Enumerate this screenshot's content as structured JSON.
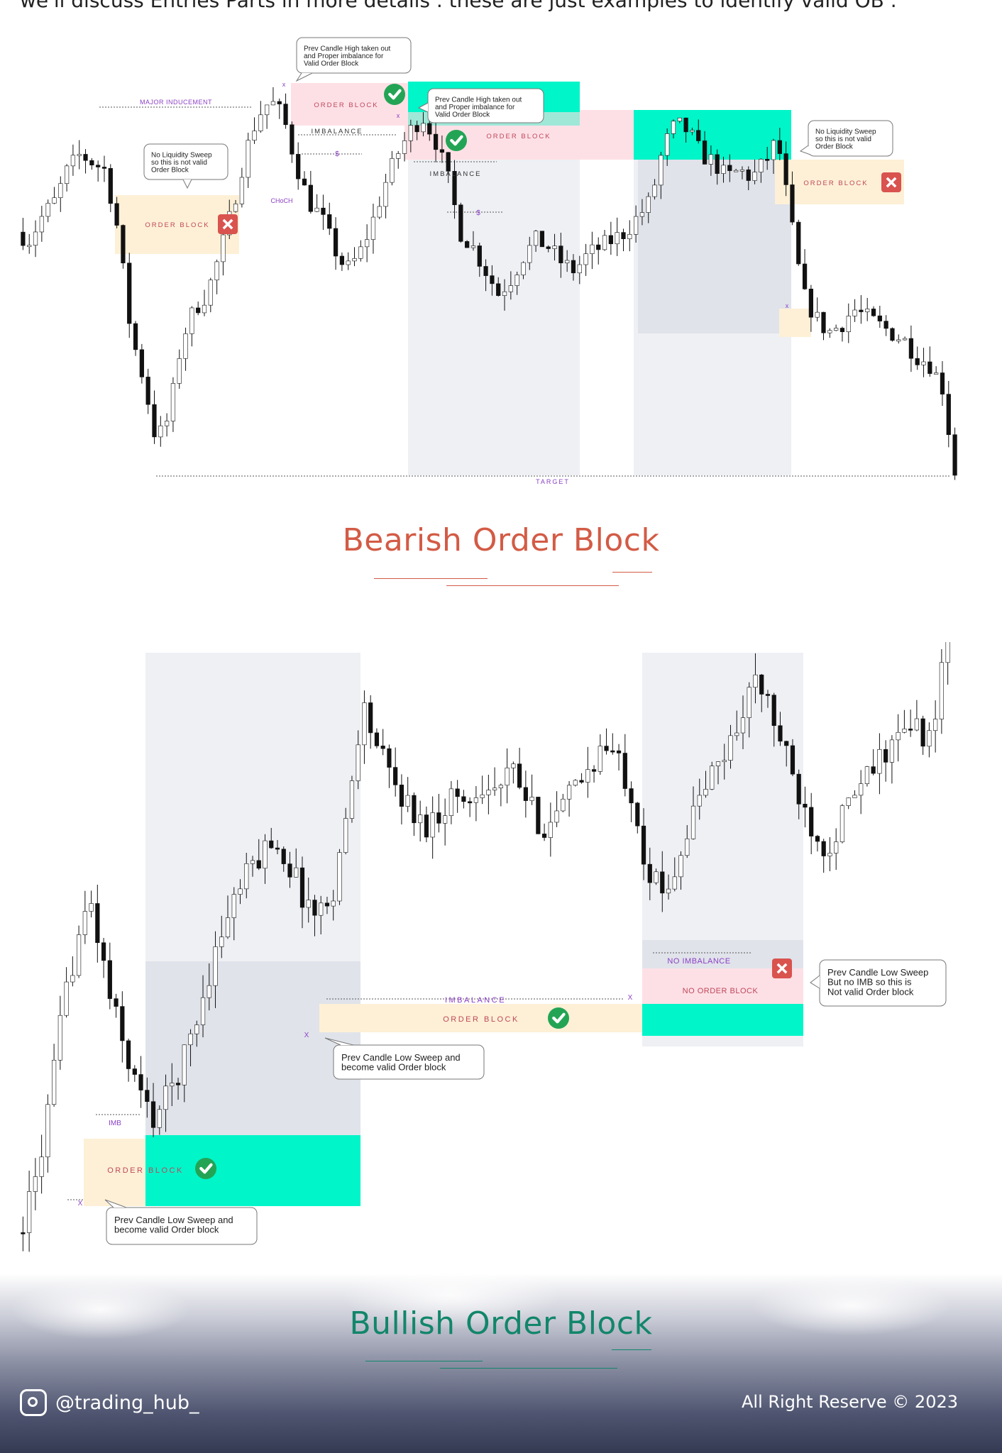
{
  "intro_text": "we'll discuss Entries Parts in more details . these are just examples to identify valid OB .",
  "bearish": {
    "title": "Bearish Order Block",
    "labels": {
      "major_inducement": "MAJOR INDUCEMENT",
      "order_block": "ORDER BLOCK",
      "imbalance": "IMBALANCE",
      "dollar": "$",
      "choch": "CHoCH",
      "x": "x",
      "target": "TARGET"
    },
    "callouts": {
      "no_sweep_left": [
        "No Liquidity Sweep",
        "so this is not valid",
        "Order Block"
      ],
      "prev_high_top": [
        "Prev Candle High taken out",
        "and Proper imbalance for",
        "Valid Order Block"
      ],
      "prev_high_mid": [
        "Prev Candle High taken out",
        "and Proper imbalance for",
        "Valid Order Block"
      ],
      "no_sweep_right": [
        "No Liquidity Sweep",
        "so this is not valid",
        "Order Block"
      ]
    }
  },
  "bullish": {
    "title": "Bullish Order Block",
    "labels": {
      "imb": "IMB",
      "order_block": "ORDER BLOCK",
      "imbalance": "IMBALANCE",
      "no_imbalance": "NO  IMBALANCE",
      "no_order_block": "NO ORDER BLOCK",
      "x": "X"
    },
    "callouts": {
      "prev_low_left": [
        "Prev Candle Low Sweep and",
        "become valid Order block"
      ],
      "prev_low_mid": [
        "Prev Candle Low Sweep and",
        "become valid Order block"
      ],
      "prev_low_right": [
        "Prev Candle Low Sweep",
        "But no IMB so this is",
        "Not  valid Order block"
      ]
    }
  },
  "footer": {
    "handle": "@trading_hub_",
    "copyright": "All Right Reserve © 2023"
  },
  "colors": {
    "bear_accent": "#d35b45",
    "bull_accent": "#12866a",
    "teal_zone": "#00f5c8",
    "pink_zone": "#fde0e6",
    "cream_zone": "#fdf0d6",
    "grey_zone": "#eef0f4",
    "purple_text": "#8b3fc4",
    "check_green": "#23a455",
    "cross_red": "#d9534f"
  },
  "chart_data": [
    {
      "type": "candlestick",
      "title": "Bearish Order Block",
      "price_path": [
        62,
        60,
        66,
        70,
        78,
        82,
        80,
        78,
        62,
        36,
        24,
        8,
        14,
        34,
        42,
        46,
        56,
        68,
        82,
        92,
        96,
        92,
        80,
        70,
        66,
        58,
        52,
        56,
        64,
        74,
        82,
        88,
        92,
        86,
        76,
        62,
        58,
        52,
        46,
        50,
        56,
        60,
        58,
        54,
        52,
        56,
        58,
        60,
        62,
        66,
        70,
        84,
        90,
        88,
        82,
        80,
        76,
        78,
        76,
        80,
        86,
        66,
        46,
        40,
        36,
        38,
        42,
        40,
        38,
        36,
        34,
        30,
        28,
        22,
        0
      ],
      "annotations": [
        "MAJOR INDUCEMENT",
        "ORDER BLOCK",
        "IMBALANCE",
        "$",
        "CHoCH",
        "TARGET"
      ]
    },
    {
      "type": "candlestick",
      "title": "Bullish Order Block",
      "price_path": [
        6,
        12,
        26,
        44,
        58,
        64,
        50,
        40,
        32,
        26,
        30,
        36,
        44,
        54,
        62,
        68,
        72,
        76,
        72,
        66,
        62,
        66,
        80,
        100,
        92,
        86,
        82,
        78,
        80,
        84,
        82,
        86,
        84,
        88,
        82,
        78,
        80,
        84,
        88,
        92,
        90,
        84,
        70,
        66,
        72,
        80,
        86,
        90,
        96,
        104,
        100,
        92,
        84,
        78,
        74,
        80,
        84,
        88,
        92,
        94,
        96,
        92,
        118
      ],
      "annotations": [
        "IMB",
        "ORDER BLOCK",
        "IMBALANCE",
        "NO  IMBALANCE",
        "NO ORDER BLOCK",
        "X"
      ]
    }
  ]
}
